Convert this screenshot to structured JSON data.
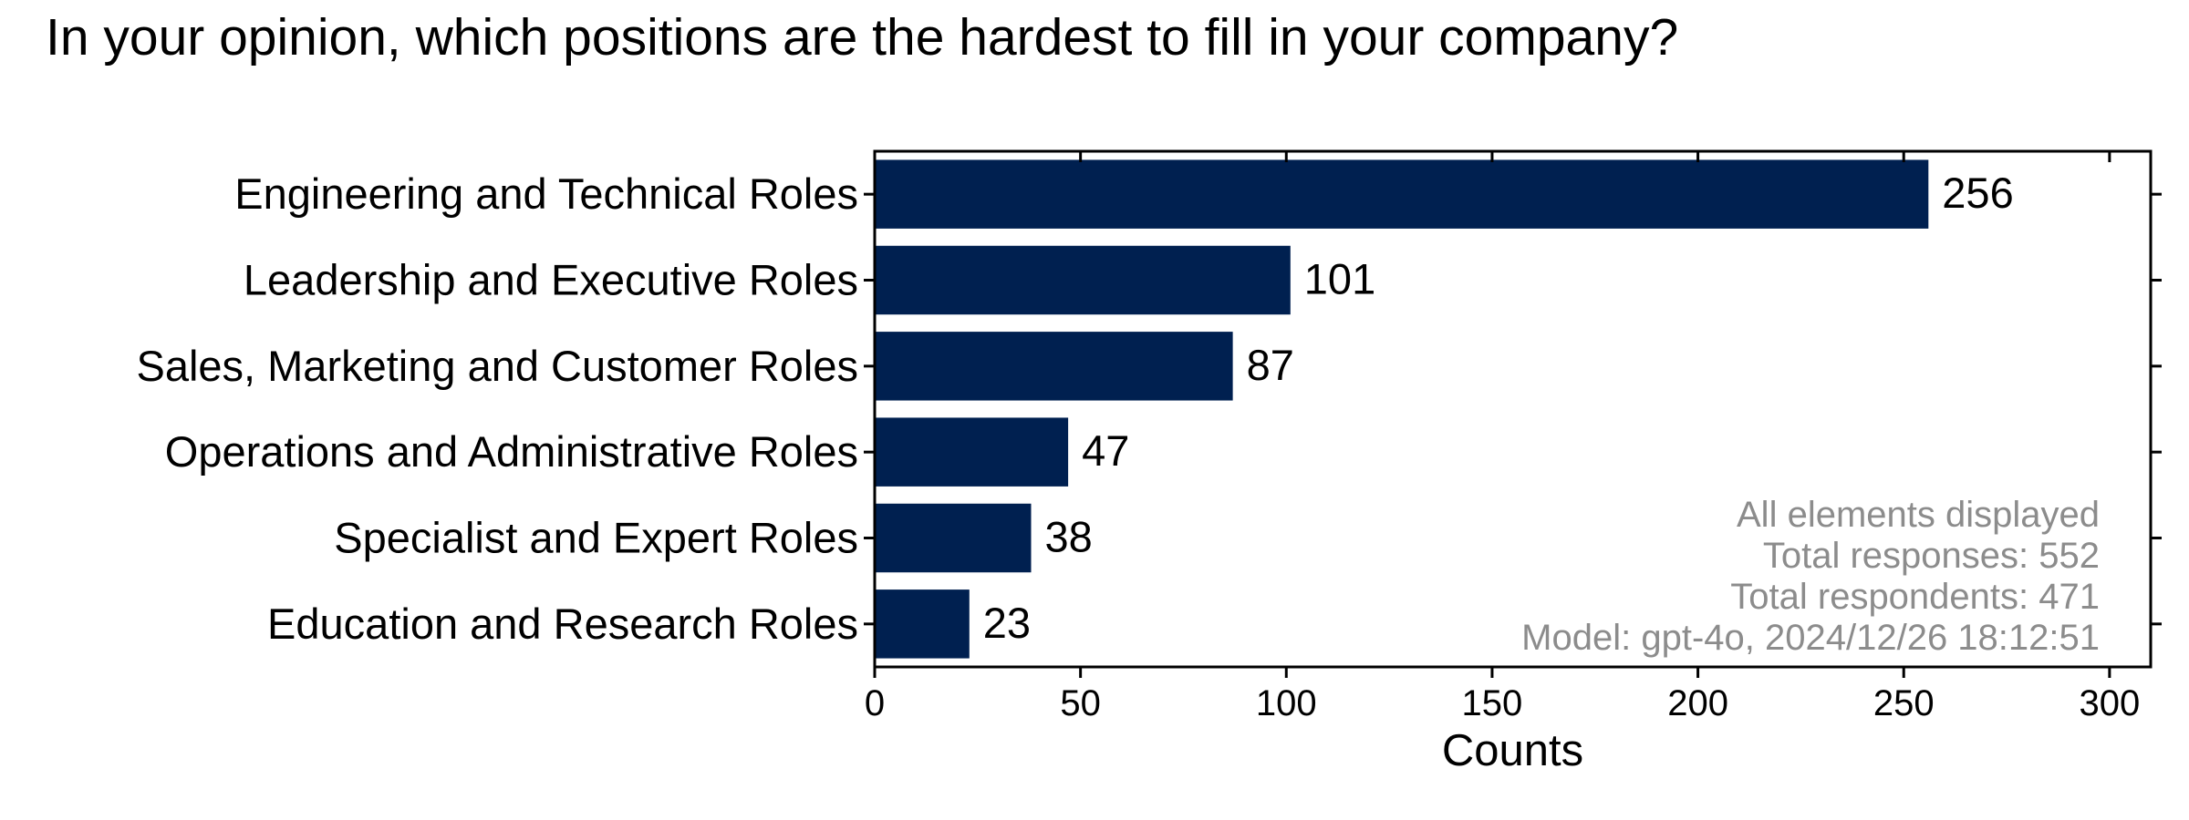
{
  "chart_data": {
    "type": "bar",
    "orientation": "horizontal",
    "title": "In your opinion, which positions are the hardest to fill in your company?",
    "xlabel": "Counts",
    "ylabel": "",
    "categories": [
      "Engineering and Technical Roles",
      "Leadership and Executive Roles",
      "Sales, Marketing and Customer Roles",
      "Operations and Administrative Roles",
      "Specialist and Expert Roles",
      "Education and Research Roles"
    ],
    "values": [
      256,
      101,
      87,
      47,
      38,
      23
    ],
    "xlim": [
      0,
      310
    ],
    "xticks": [
      0,
      50,
      100,
      150,
      200,
      250,
      300
    ],
    "bar_color": "#002050",
    "grid": false,
    "notes": [
      "All elements displayed",
      "Total responses: 552",
      "Total respondents: 471",
      "Model: gpt-4o, 2024/12/26 18:12:51"
    ]
  }
}
